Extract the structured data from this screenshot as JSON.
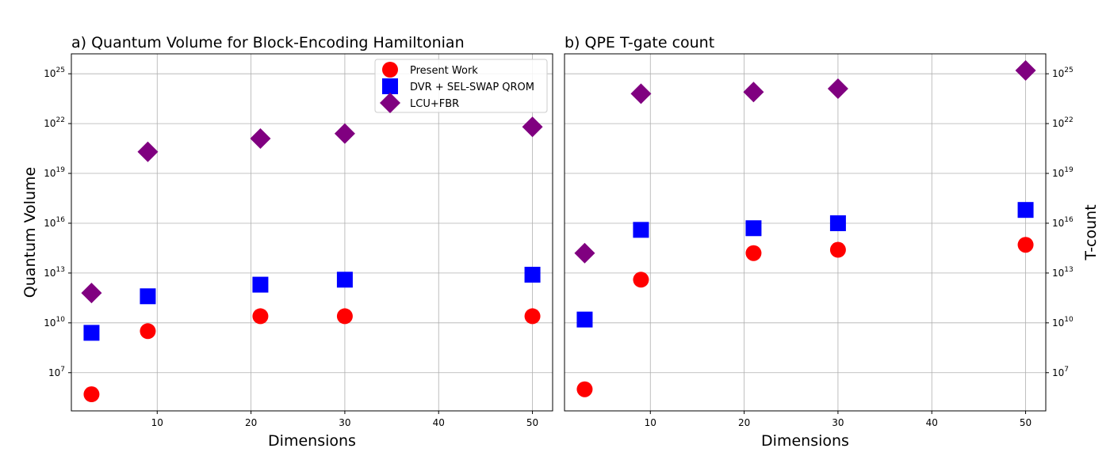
{
  "chart_data": [
    {
      "type": "scatter",
      "title": "a) Quantum Volume for Block-Encoding Hamiltonian",
      "xlabel": "Dimensions",
      "ylabel": "Quantum Volume",
      "yscale": "log",
      "xlim": [
        0.85,
        52.15
      ],
      "ylim_log10": [
        4.7,
        26.2
      ],
      "xticks": [
        10,
        20,
        30,
        40,
        50
      ],
      "yticks_exp": [
        7,
        10,
        13,
        16,
        19,
        22,
        25
      ],
      "y_axis_side": "left",
      "grid": true,
      "legend": "top-right",
      "x": [
        3,
        9,
        21,
        30,
        50
      ],
      "series": [
        {
          "name": "Present Work",
          "marker": "circle",
          "color": "#ff0000",
          "log10_values": [
            5.7,
            9.5,
            10.4,
            10.4,
            10.4
          ]
        },
        {
          "name": "DVR + SEL-SWAP QROM",
          "marker": "square",
          "color": "#0000ff",
          "log10_values": [
            9.4,
            11.6,
            12.3,
            12.6,
            12.9
          ]
        },
        {
          "name": "LCU+FBR",
          "marker": "diamond",
          "color": "#800080",
          "log10_values": [
            11.8,
            20.3,
            21.1,
            21.4,
            21.8
          ]
        }
      ]
    },
    {
      "type": "scatter",
      "title": "b) QPE T-gate count",
      "xlabel": "Dimensions",
      "ylabel": "T-count",
      "yscale": "log",
      "xlim": [
        0.85,
        52.15
      ],
      "ylim_log10": [
        4.7,
        26.2
      ],
      "xticks": [
        10,
        20,
        30,
        40,
        50
      ],
      "yticks_exp": [
        7,
        10,
        13,
        16,
        19,
        22,
        25
      ],
      "y_axis_side": "right",
      "grid": true,
      "legend": "none",
      "x": [
        3,
        9,
        21,
        30,
        50
      ],
      "series": [
        {
          "name": "Present Work",
          "marker": "circle",
          "color": "#ff0000",
          "log10_values": [
            6.0,
            12.6,
            14.2,
            14.4,
            14.7
          ]
        },
        {
          "name": "DVR + SEL-SWAP QROM",
          "marker": "square",
          "color": "#0000ff",
          "log10_values": [
            10.2,
            15.6,
            15.7,
            16.0,
            16.8
          ]
        },
        {
          "name": "LCU+FBR",
          "marker": "diamond",
          "color": "#800080",
          "log10_values": [
            14.2,
            23.8,
            23.9,
            24.1,
            25.2
          ]
        }
      ]
    }
  ]
}
